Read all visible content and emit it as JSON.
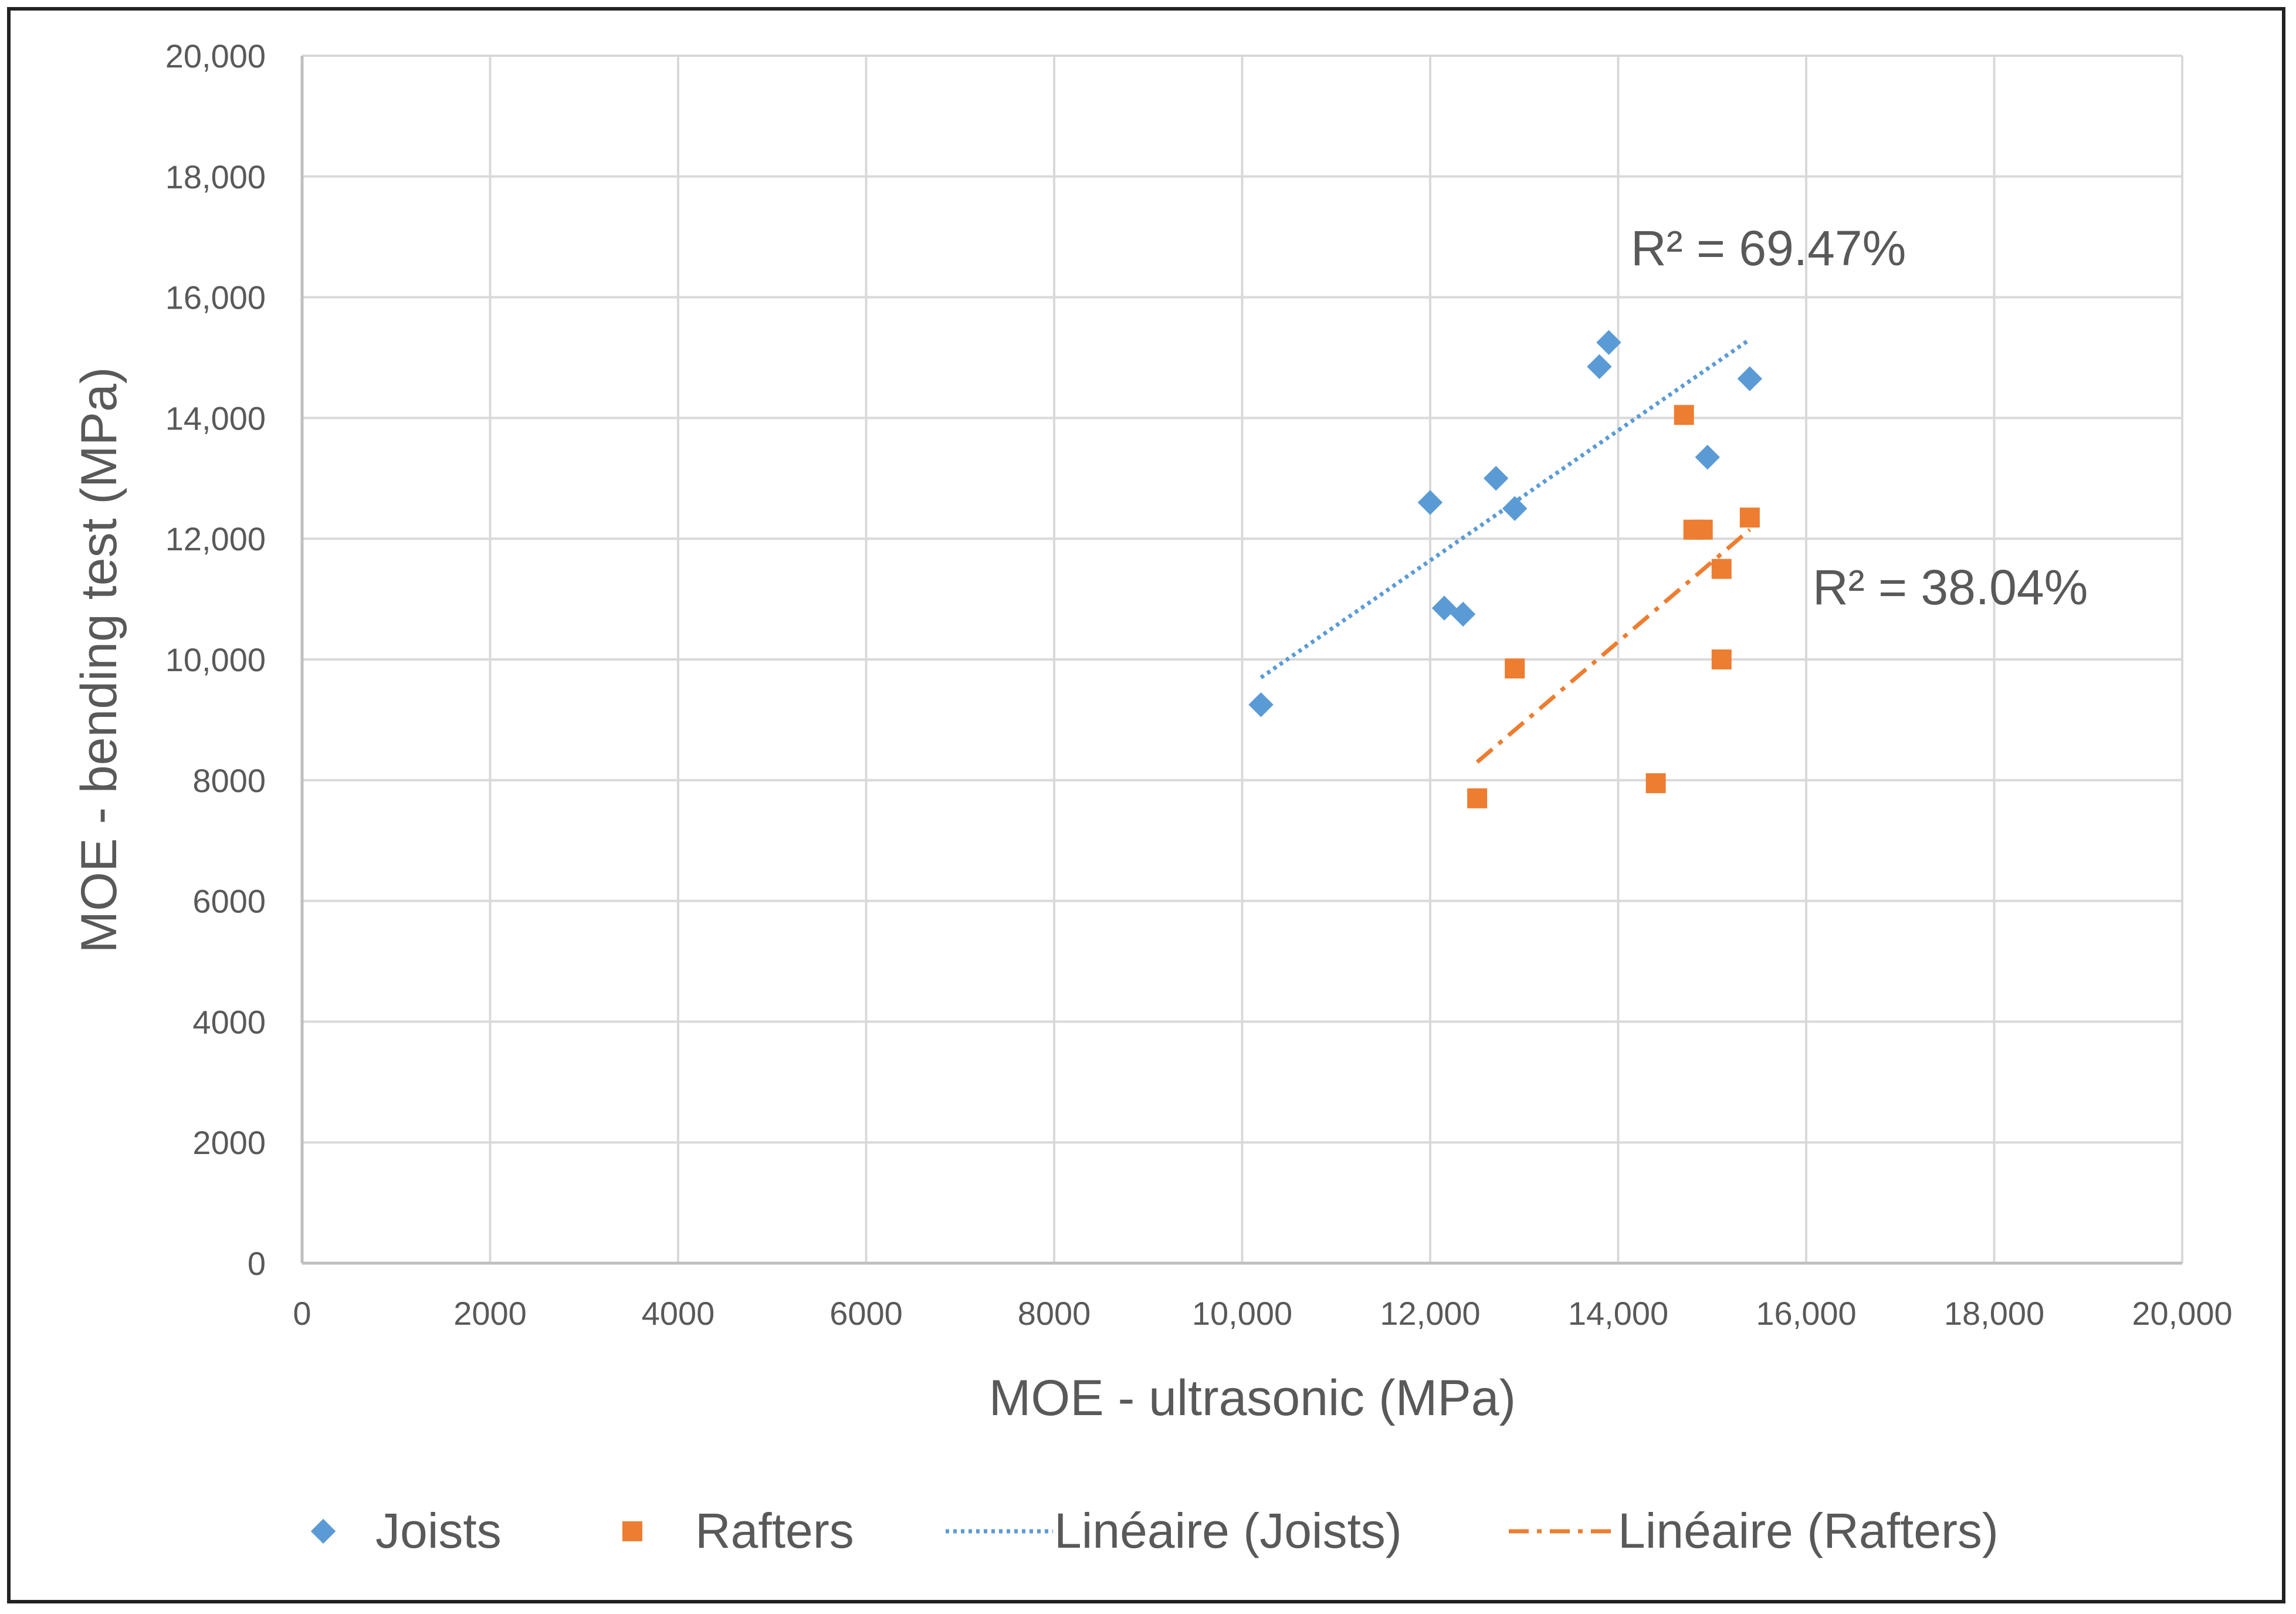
{
  "chart_data": {
    "type": "scatter",
    "xlabel": "MOE - ultrasonic (MPa)",
    "ylabel": "MOE - bending test (MPa)",
    "xlim": [
      0,
      20000
    ],
    "ylim": [
      0,
      20000
    ],
    "grid": true,
    "legend_position": "bottom",
    "x_ticks": [
      0,
      2000,
      4000,
      6000,
      8000,
      10000,
      12000,
      14000,
      16000,
      18000,
      20000
    ],
    "x_tick_labels": [
      "0",
      "2000",
      "4000",
      "6000",
      "8000",
      "10,000",
      "12,000",
      "14,000",
      "16,000",
      "18,000",
      "20,000"
    ],
    "y_ticks": [
      0,
      2000,
      4000,
      6000,
      8000,
      10000,
      12000,
      14000,
      16000,
      18000,
      20000
    ],
    "y_tick_labels": [
      "0",
      "2000",
      "4000",
      "6000",
      "8000",
      "10,000",
      "12,000",
      "14,000",
      "16,000",
      "18,000",
      "20,000"
    ],
    "series": [
      {
        "name": "Joists",
        "marker": "diamond",
        "color": "#5B9BD5",
        "points": [
          [
            10200,
            9250
          ],
          [
            12000,
            12600
          ],
          [
            12150,
            10850
          ],
          [
            12350,
            10750
          ],
          [
            12700,
            13000
          ],
          [
            12900,
            12500
          ],
          [
            13800,
            14850
          ],
          [
            13900,
            15250
          ],
          [
            14950,
            13350
          ],
          [
            15400,
            14650
          ]
        ]
      },
      {
        "name": "Rafters",
        "marker": "square",
        "color": "#ED7D31",
        "points": [
          [
            12500,
            7700
          ],
          [
            12900,
            9850
          ],
          [
            14400,
            7950
          ],
          [
            14700,
            14050
          ],
          [
            14800,
            12150
          ],
          [
            14900,
            12150
          ],
          [
            15100,
            11500
          ],
          [
            15100,
            10000
          ],
          [
            15400,
            12350
          ]
        ]
      }
    ],
    "trendlines": [
      {
        "name": "Linéaire (Joists)",
        "color": "#5B9BD5",
        "style": "dotted",
        "x": [
          10200,
          15400
        ],
        "y": [
          9700,
          15300
        ],
        "annotation": "R² = 69.47%"
      },
      {
        "name": "Linéaire (Rafters)",
        "color": "#ED7D31",
        "style": "dash-dot",
        "x": [
          12500,
          15400
        ],
        "y": [
          8300,
          12150
        ],
        "annotation": "R² = 38.04%"
      }
    ],
    "legend": [
      "Joists",
      "Rafters",
      "Linéaire (Joists)",
      "Linéaire (Rafters)"
    ]
  }
}
